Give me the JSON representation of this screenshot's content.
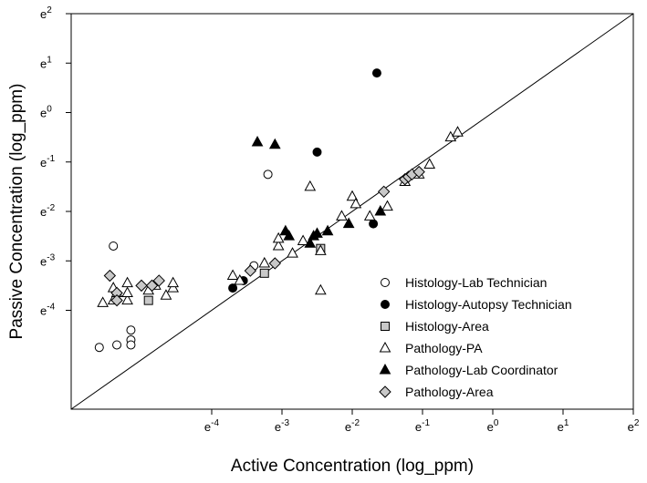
{
  "chart_data": {
    "type": "scatter",
    "xlabel": "Active Concentration (log_ppm)",
    "ylabel": "Passive Concentration (log_ppm)",
    "scale": "log",
    "base": "e",
    "xlim": [
      -6,
      2
    ],
    "ylim": [
      -6,
      2
    ],
    "x_ticks": [
      {
        "value": -4,
        "exp": "-4"
      },
      {
        "value": -3,
        "exp": "-3"
      },
      {
        "value": -2,
        "exp": "-2"
      },
      {
        "value": -1,
        "exp": "-1"
      },
      {
        "value": 0,
        "exp": "0"
      },
      {
        "value": 1,
        "exp": "1"
      },
      {
        "value": 2,
        "exp": "2"
      }
    ],
    "y_ticks": [
      {
        "value": -4,
        "exp": "-4"
      },
      {
        "value": -3,
        "exp": "-3"
      },
      {
        "value": -2,
        "exp": "-2"
      },
      {
        "value": -1,
        "exp": "-1"
      },
      {
        "value": 0,
        "exp": "0"
      },
      {
        "value": 1,
        "exp": "1"
      },
      {
        "value": 2,
        "exp": "2"
      }
    ],
    "tick_base_label": "e",
    "reference_line": {
      "type": "identity",
      "from": [
        -6,
        -6
      ],
      "to": [
        2,
        2
      ]
    },
    "legend_position": "lower-right",
    "series": [
      {
        "name": "Histology-Lab Technician",
        "marker": "circle",
        "fill": "#ffffff",
        "stroke": "#000000",
        "points": [
          [
            -5.6,
            -4.75
          ],
          [
            -5.4,
            -2.7
          ],
          [
            -5.35,
            -4.7
          ],
          [
            -5.15,
            -4.4
          ],
          [
            -5.15,
            -4.6
          ],
          [
            -5.15,
            -4.7
          ],
          [
            -3.4,
            -3.1
          ],
          [
            -3.2,
            -1.25
          ]
        ]
      },
      {
        "name": "Histology-Autopsy Technician",
        "marker": "circle",
        "fill": "#000000",
        "stroke": "#000000",
        "points": [
          [
            -3.7,
            -3.55
          ],
          [
            -3.55,
            -3.4
          ],
          [
            -2.5,
            -0.8
          ],
          [
            -1.7,
            -2.25
          ],
          [
            -1.65,
            0.8
          ]
        ]
      },
      {
        "name": "Histology-Area",
        "marker": "square",
        "fill": "#c8c8c8",
        "stroke": "#000000",
        "points": [
          [
            -4.9,
            -3.8
          ],
          [
            -3.25,
            -3.25
          ],
          [
            -2.45,
            -2.75
          ]
        ]
      },
      {
        "name": "Pathology-PA",
        "marker": "triangle",
        "fill": "#ffffff",
        "stroke": "#000000",
        "points": [
          [
            -5.55,
            -3.85
          ],
          [
            -5.4,
            -3.55
          ],
          [
            -5.4,
            -3.8
          ],
          [
            -5.35,
            -3.65
          ],
          [
            -5.2,
            -3.8
          ],
          [
            -5.2,
            -3.65
          ],
          [
            -5.2,
            -3.45
          ],
          [
            -4.9,
            -3.6
          ],
          [
            -4.8,
            -3.5
          ],
          [
            -4.65,
            -3.7
          ],
          [
            -4.55,
            -3.55
          ],
          [
            -4.55,
            -3.45
          ],
          [
            -3.7,
            -3.3
          ],
          [
            -3.6,
            -3.4
          ],
          [
            -3.25,
            -3.05
          ],
          [
            -3.05,
            -2.7
          ],
          [
            -3.05,
            -2.55
          ],
          [
            -2.85,
            -2.85
          ],
          [
            -2.7,
            -2.6
          ],
          [
            -2.6,
            -1.5
          ],
          [
            -2.45,
            -2.8
          ],
          [
            -2.45,
            -3.6
          ],
          [
            -2.15,
            -2.1
          ],
          [
            -2.0,
            -1.7
          ],
          [
            -1.95,
            -1.85
          ],
          [
            -1.75,
            -2.1
          ],
          [
            -1.5,
            -1.9
          ],
          [
            -1.25,
            -1.4
          ],
          [
            -1.05,
            -1.25
          ],
          [
            -0.9,
            -1.05
          ],
          [
            -0.6,
            -0.5
          ],
          [
            -0.5,
            -0.4
          ]
        ]
      },
      {
        "name": "Pathology-Lab Coordinator",
        "marker": "triangle",
        "fill": "#000000",
        "stroke": "#000000",
        "points": [
          [
            -3.35,
            -0.6
          ],
          [
            -3.1,
            -0.65
          ],
          [
            -2.95,
            -2.4
          ],
          [
            -2.9,
            -2.5
          ],
          [
            -2.6,
            -2.65
          ],
          [
            -2.55,
            -2.5
          ],
          [
            -2.5,
            -2.45
          ],
          [
            -2.35,
            -2.4
          ],
          [
            -2.05,
            -2.25
          ],
          [
            -1.6,
            -2.0
          ]
        ]
      },
      {
        "name": "Pathology-Area",
        "marker": "diamond",
        "fill": "#c8c8c8",
        "stroke": "#000000",
        "points": [
          [
            -5.45,
            -3.3
          ],
          [
            -5.35,
            -3.65
          ],
          [
            -5.35,
            -3.8
          ],
          [
            -5.0,
            -3.5
          ],
          [
            -4.85,
            -3.5
          ],
          [
            -4.75,
            -3.4
          ],
          [
            -3.45,
            -3.2
          ],
          [
            -3.1,
            -3.05
          ],
          [
            -1.55,
            -1.6
          ],
          [
            -1.25,
            -1.35
          ],
          [
            -1.2,
            -1.3
          ],
          [
            -1.15,
            -1.25
          ],
          [
            -1.05,
            -1.2
          ]
        ]
      }
    ]
  }
}
